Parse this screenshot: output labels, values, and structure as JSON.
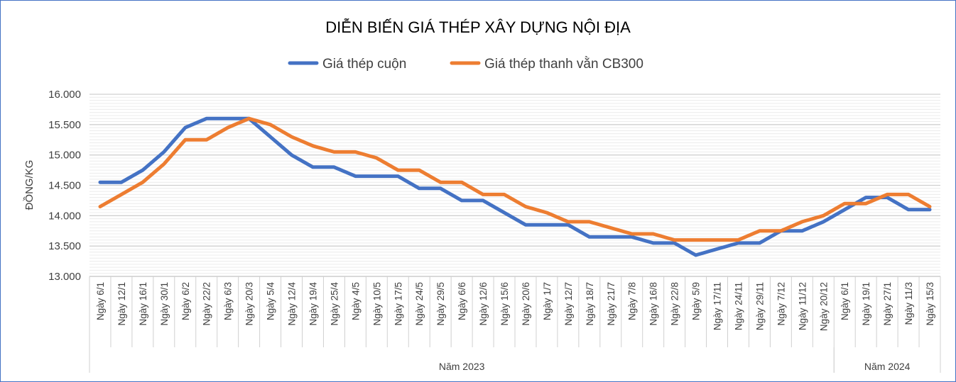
{
  "chart_data": {
    "type": "line",
    "title": "DIỄN BIẾN GIÁ THÉP XÂY DỰNG NỘI ĐỊA",
    "ylabel": "ĐỒNG/KG",
    "xlabel": "",
    "ylim": [
      13000,
      16000
    ],
    "yticks": [
      "13.000",
      "13.500",
      "14.000",
      "14.500",
      "15.000",
      "15.500",
      "16.000"
    ],
    "ytick_values": [
      13000,
      13500,
      14000,
      14500,
      15000,
      15500,
      16000
    ],
    "grid": true,
    "legend_position": "top",
    "categories": [
      "Ngày 6/1",
      "Ngày 12/1",
      "Ngày 16/1",
      "Ngày 30/1",
      "Ngày 6/2",
      "Ngày 22/2",
      "Ngày 6/3",
      "Ngày 20/3",
      "Ngày 5/4",
      "Ngày 12/4",
      "Ngày 19/4",
      "Ngày 25/4",
      "Ngày 4/5",
      "Ngày 10/5",
      "Ngày 17/5",
      "Ngày 24/5",
      "Ngày 29/5",
      "Ngày 6/6",
      "Ngày 12/6",
      "Ngày 15/6",
      "Ngày 20/6",
      "Ngày 1/7",
      "Ngày 12/7",
      "Ngày 18/7",
      "Ngày 21/7",
      "Ngày 7/8",
      "Ngày 16/8",
      "Ngày 22/8",
      "Ngày 5/9",
      "Ngày 17/11",
      "Ngày 24/11",
      "Ngày 29/11",
      "Ngày 7/12",
      "Ngày 11/12",
      "Ngày 20/12",
      "Ngày 6/1",
      "Ngày 19/1",
      "Ngày 27/1",
      "Ngày 11/3",
      "Ngày 15/3"
    ],
    "groups": [
      {
        "label": "Năm 2023",
        "count": 35
      },
      {
        "label": "Năm 2024",
        "count": 5
      }
    ],
    "series": [
      {
        "name": "Giá thép cuộn",
        "color": "#4472c4",
        "values": [
          14550,
          14550,
          14750,
          15050,
          15450,
          15600,
          15600,
          15600,
          15300,
          15000,
          14800,
          14800,
          14650,
          14650,
          14650,
          14450,
          14450,
          14250,
          14250,
          14050,
          13850,
          13850,
          13850,
          13650,
          13650,
          13650,
          13550,
          13550,
          13350,
          13450,
          13550,
          13550,
          13750,
          13750,
          13900,
          14100,
          14300,
          14300,
          14100,
          14100
        ]
      },
      {
        "name": "Giá thép thanh vằn CB300",
        "color": "#ed7d31",
        "values": [
          14150,
          14350,
          14550,
          14850,
          15250,
          15250,
          15450,
          15600,
          15500,
          15300,
          15150,
          15050,
          15050,
          14950,
          14750,
          14750,
          14550,
          14550,
          14350,
          14350,
          14150,
          14050,
          13900,
          13900,
          13800,
          13700,
          13700,
          13600,
          13600,
          13600,
          13600,
          13750,
          13750,
          13900,
          14000,
          14200,
          14200,
          14350,
          14350,
          14150
        ]
      }
    ]
  }
}
